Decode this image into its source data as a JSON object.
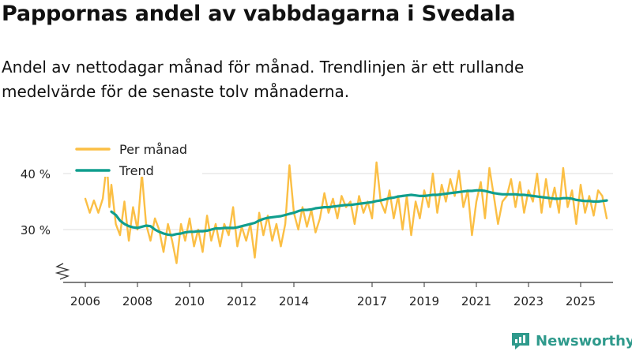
{
  "header": {
    "title": "Pappornas andel av vabbdagarna i Svedala",
    "subtitle": "Andel av nettodagar månad för månad. Trendlinjen är ett rullande medelvärde för de senaste tolv månaderna."
  },
  "brand": {
    "name": "Newsworthy",
    "icon": "newsworthy-logo-icon",
    "color": "#2f9a8c"
  },
  "colors": {
    "monthly": "#fbbf45",
    "trend": "#109e8e",
    "grid": "#dddddd",
    "axis": "#333333"
  },
  "chart_data": {
    "type": "line",
    "title": "Pappornas andel av vabbdagarna i Svedala",
    "xlabel": "",
    "ylabel": "",
    "xlim": [
      2005.7,
      2026.0
    ],
    "ylim": [
      20,
      43
    ],
    "y_ticks": [
      30,
      40
    ],
    "y_tick_labels": [
      "30 %",
      "40 %"
    ],
    "x_ticks": [
      2006,
      2008,
      2010,
      2012,
      2014,
      2017,
      2019,
      2021,
      2023,
      2025
    ],
    "x_tick_labels": [
      "2006",
      "2008",
      "2010",
      "2012",
      "2014",
      "2017",
      "2019",
      "2021",
      "2023",
      "2025"
    ],
    "axis_break": true,
    "grid": "horizontal",
    "legend_position": "top-left",
    "series": [
      {
        "name": "Per månad",
        "color": "#fbbf45",
        "points": [
          [
            2006.0,
            35.5
          ],
          [
            2006.17,
            33.0
          ],
          [
            2006.33,
            35.2
          ],
          [
            2006.5,
            33.0
          ],
          [
            2006.67,
            35.5
          ],
          [
            2006.83,
            42.0
          ],
          [
            2006.92,
            34.0
          ],
          [
            2007.0,
            38.0
          ],
          [
            2007.17,
            31.0
          ],
          [
            2007.33,
            29.0
          ],
          [
            2007.5,
            35.0
          ],
          [
            2007.67,
            28.0
          ],
          [
            2007.83,
            34.0
          ],
          [
            2008.0,
            30.0
          ],
          [
            2008.17,
            40.0
          ],
          [
            2008.33,
            31.0
          ],
          [
            2008.5,
            28.0
          ],
          [
            2008.67,
            32.0
          ],
          [
            2008.83,
            30.0
          ],
          [
            2009.0,
            26.0
          ],
          [
            2009.17,
            31.0
          ],
          [
            2009.33,
            28.0
          ],
          [
            2009.5,
            24.0
          ],
          [
            2009.67,
            31.0
          ],
          [
            2009.83,
            28.0
          ],
          [
            2010.0,
            32.0
          ],
          [
            2010.17,
            27.0
          ],
          [
            2010.33,
            30.0
          ],
          [
            2010.5,
            26.0
          ],
          [
            2010.67,
            32.5
          ],
          [
            2010.83,
            28.0
          ],
          [
            2011.0,
            31.0
          ],
          [
            2011.17,
            27.0
          ],
          [
            2011.33,
            31.0
          ],
          [
            2011.5,
            29.0
          ],
          [
            2011.67,
            34.0
          ],
          [
            2011.83,
            27.0
          ],
          [
            2012.0,
            30.5
          ],
          [
            2012.17,
            28.0
          ],
          [
            2012.33,
            31.0
          ],
          [
            2012.5,
            25.0
          ],
          [
            2012.67,
            33.0
          ],
          [
            2012.83,
            29.0
          ],
          [
            2013.0,
            32.5
          ],
          [
            2013.17,
            28.0
          ],
          [
            2013.33,
            31.0
          ],
          [
            2013.5,
            27.0
          ],
          [
            2013.67,
            31.0
          ],
          [
            2013.83,
            41.5
          ],
          [
            2014.0,
            33.0
          ],
          [
            2014.17,
            30.0
          ],
          [
            2014.33,
            34.0
          ],
          [
            2014.5,
            30.5
          ],
          [
            2014.67,
            33.5
          ],
          [
            2014.83,
            29.5
          ],
          [
            2015.0,
            32.0
          ],
          [
            2015.17,
            36.5
          ],
          [
            2015.33,
            33.0
          ],
          [
            2015.5,
            35.5
          ],
          [
            2015.67,
            32.0
          ],
          [
            2015.83,
            36.0
          ],
          [
            2016.0,
            34.0
          ],
          [
            2016.17,
            35.0
          ],
          [
            2016.33,
            31.0
          ],
          [
            2016.5,
            36.0
          ],
          [
            2016.67,
            33.0
          ],
          [
            2016.83,
            35.0
          ],
          [
            2017.0,
            32.0
          ],
          [
            2017.17,
            42.0
          ],
          [
            2017.33,
            35.0
          ],
          [
            2017.5,
            33.0
          ],
          [
            2017.67,
            37.0
          ],
          [
            2017.83,
            32.0
          ],
          [
            2018.0,
            36.0
          ],
          [
            2018.17,
            30.0
          ],
          [
            2018.33,
            36.0
          ],
          [
            2018.5,
            29.0
          ],
          [
            2018.67,
            35.0
          ],
          [
            2018.83,
            32.0
          ],
          [
            2019.0,
            37.0
          ],
          [
            2019.17,
            34.0
          ],
          [
            2019.33,
            40.0
          ],
          [
            2019.5,
            33.0
          ],
          [
            2019.67,
            38.0
          ],
          [
            2019.83,
            35.0
          ],
          [
            2020.0,
            39.0
          ],
          [
            2020.17,
            36.0
          ],
          [
            2020.33,
            40.5
          ],
          [
            2020.5,
            34.0
          ],
          [
            2020.67,
            37.0
          ],
          [
            2020.83,
            29.0
          ],
          [
            2021.0,
            35.0
          ],
          [
            2021.17,
            38.5
          ],
          [
            2021.33,
            32.0
          ],
          [
            2021.5,
            41.0
          ],
          [
            2021.67,
            36.0
          ],
          [
            2021.83,
            31.0
          ],
          [
            2022.0,
            35.0
          ],
          [
            2022.17,
            36.0
          ],
          [
            2022.33,
            39.0
          ],
          [
            2022.5,
            34.0
          ],
          [
            2022.67,
            38.5
          ],
          [
            2022.83,
            33.0
          ],
          [
            2023.0,
            37.0
          ],
          [
            2023.17,
            35.0
          ],
          [
            2023.33,
            40.0
          ],
          [
            2023.5,
            33.0
          ],
          [
            2023.67,
            39.0
          ],
          [
            2023.83,
            34.0
          ],
          [
            2024.0,
            37.5
          ],
          [
            2024.17,
            33.0
          ],
          [
            2024.33,
            41.0
          ],
          [
            2024.5,
            34.0
          ],
          [
            2024.67,
            37.0
          ],
          [
            2024.83,
            31.0
          ],
          [
            2025.0,
            38.0
          ],
          [
            2025.17,
            33.0
          ],
          [
            2025.33,
            36.0
          ],
          [
            2025.5,
            32.5
          ],
          [
            2025.67,
            37.0
          ],
          [
            2025.83,
            36.0
          ],
          [
            2026.0,
            32.0
          ]
        ]
      },
      {
        "name": "Trend",
        "color": "#109e8e",
        "points": [
          [
            2007.0,
            33.2
          ],
          [
            2007.17,
            32.6
          ],
          [
            2007.33,
            31.6
          ],
          [
            2007.5,
            31.0
          ],
          [
            2007.67,
            30.6
          ],
          [
            2007.83,
            30.4
          ],
          [
            2008.0,
            30.3
          ],
          [
            2008.17,
            30.5
          ],
          [
            2008.33,
            30.7
          ],
          [
            2008.5,
            30.6
          ],
          [
            2008.67,
            30.0
          ],
          [
            2008.83,
            29.6
          ],
          [
            2009.0,
            29.3
          ],
          [
            2009.17,
            29.1
          ],
          [
            2009.33,
            29.0
          ],
          [
            2009.5,
            29.2
          ],
          [
            2009.67,
            29.3
          ],
          [
            2009.83,
            29.5
          ],
          [
            2010.0,
            29.6
          ],
          [
            2010.17,
            29.6
          ],
          [
            2010.33,
            29.7
          ],
          [
            2010.5,
            29.7
          ],
          [
            2010.67,
            29.8
          ],
          [
            2010.83,
            30.0
          ],
          [
            2011.0,
            30.2
          ],
          [
            2011.17,
            30.2
          ],
          [
            2011.33,
            30.3
          ],
          [
            2011.5,
            30.3
          ],
          [
            2011.67,
            30.3
          ],
          [
            2011.83,
            30.4
          ],
          [
            2012.0,
            30.6
          ],
          [
            2012.17,
            30.8
          ],
          [
            2012.33,
            31.0
          ],
          [
            2012.5,
            31.2
          ],
          [
            2012.67,
            31.6
          ],
          [
            2012.83,
            31.9
          ],
          [
            2013.0,
            32.1
          ],
          [
            2013.17,
            32.2
          ],
          [
            2013.33,
            32.3
          ],
          [
            2013.5,
            32.4
          ],
          [
            2013.67,
            32.6
          ],
          [
            2013.83,
            32.8
          ],
          [
            2014.0,
            33.0
          ],
          [
            2014.17,
            33.3
          ],
          [
            2014.33,
            33.5
          ],
          [
            2014.5,
            33.5
          ],
          [
            2014.67,
            33.6
          ],
          [
            2014.83,
            33.8
          ],
          [
            2015.0,
            33.9
          ],
          [
            2015.17,
            34.0
          ],
          [
            2015.33,
            34.0
          ],
          [
            2015.5,
            34.1
          ],
          [
            2015.67,
            34.2
          ],
          [
            2015.83,
            34.3
          ],
          [
            2016.0,
            34.4
          ],
          [
            2016.17,
            34.4
          ],
          [
            2016.33,
            34.5
          ],
          [
            2016.5,
            34.6
          ],
          [
            2016.67,
            34.7
          ],
          [
            2016.83,
            34.8
          ],
          [
            2017.0,
            34.9
          ],
          [
            2017.17,
            35.1
          ],
          [
            2017.33,
            35.2
          ],
          [
            2017.5,
            35.4
          ],
          [
            2017.67,
            35.6
          ],
          [
            2017.83,
            35.7
          ],
          [
            2018.0,
            35.9
          ],
          [
            2018.17,
            36.0
          ],
          [
            2018.33,
            36.1
          ],
          [
            2018.5,
            36.2
          ],
          [
            2018.67,
            36.1
          ],
          [
            2018.83,
            36.0
          ],
          [
            2019.0,
            36.0
          ],
          [
            2019.17,
            36.1
          ],
          [
            2019.33,
            36.2
          ],
          [
            2019.5,
            36.2
          ],
          [
            2019.67,
            36.3
          ],
          [
            2019.83,
            36.4
          ],
          [
            2020.0,
            36.5
          ],
          [
            2020.17,
            36.6
          ],
          [
            2020.33,
            36.7
          ],
          [
            2020.5,
            36.8
          ],
          [
            2020.67,
            36.9
          ],
          [
            2020.83,
            36.9
          ],
          [
            2021.0,
            37.0
          ],
          [
            2021.17,
            37.0
          ],
          [
            2021.33,
            36.9
          ],
          [
            2021.5,
            36.7
          ],
          [
            2021.67,
            36.5
          ],
          [
            2021.83,
            36.4
          ],
          [
            2022.0,
            36.3
          ],
          [
            2022.17,
            36.3
          ],
          [
            2022.33,
            36.3
          ],
          [
            2022.5,
            36.3
          ],
          [
            2022.67,
            36.2
          ],
          [
            2022.83,
            36.2
          ],
          [
            2023.0,
            36.1
          ],
          [
            2023.17,
            36.0
          ],
          [
            2023.33,
            35.9
          ],
          [
            2023.5,
            35.8
          ],
          [
            2023.67,
            35.7
          ],
          [
            2023.83,
            35.6
          ],
          [
            2024.0,
            35.5
          ],
          [
            2024.17,
            35.5
          ],
          [
            2024.33,
            35.6
          ],
          [
            2024.5,
            35.6
          ],
          [
            2024.67,
            35.5
          ],
          [
            2024.83,
            35.3
          ],
          [
            2025.0,
            35.2
          ],
          [
            2025.17,
            35.1
          ],
          [
            2025.33,
            35.1
          ],
          [
            2025.5,
            35.0
          ],
          [
            2025.67,
            35.0
          ],
          [
            2025.83,
            35.1
          ],
          [
            2026.0,
            35.2
          ]
        ]
      }
    ]
  }
}
